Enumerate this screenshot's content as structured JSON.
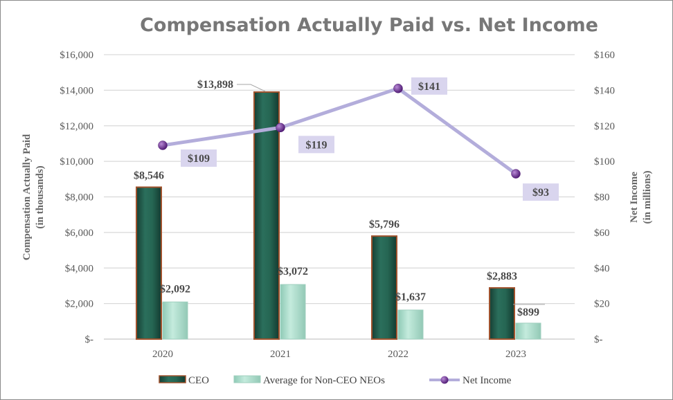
{
  "chart_data": {
    "type": "bar",
    "title": "Compensation Actually Paid vs. Net Income",
    "categories": [
      "2020",
      "2021",
      "2022",
      "2023"
    ],
    "y_left": {
      "title_line1": "Compensation Actually Paid",
      "title_line2": "(in thousands)",
      "ticks": [
        "$-",
        "$2,000",
        "$4,000",
        "$6,000",
        "$8,000",
        "$10,000",
        "$12,000",
        "$14,000",
        "$16,000"
      ],
      "range": [
        0,
        16000
      ]
    },
    "y_right": {
      "title_line1": "Net Income",
      "title_line2": "(in millions)",
      "ticks": [
        "$-",
        "$20",
        "$40",
        "$60",
        "$80",
        "$100",
        "$120",
        "$140",
        "$160"
      ],
      "range": [
        0,
        160
      ]
    },
    "series": [
      {
        "name": "CEO",
        "type": "bar",
        "axis": "left",
        "values": [
          8546,
          13898,
          5796,
          2883
        ],
        "labels": [
          "$8,546",
          "$13,898",
          "$5,796",
          "$2,883"
        ],
        "color": "#215f4d",
        "edge_color": "#a0522d"
      },
      {
        "name": "Average for Non-CEO NEOs",
        "type": "bar",
        "axis": "left",
        "values": [
          2092,
          3072,
          1637,
          899
        ],
        "labels": [
          "$2,092",
          "$3,072",
          "$1,637",
          "$899"
        ],
        "color": "#a9dccb"
      },
      {
        "name": "Net Income",
        "type": "line",
        "axis": "right",
        "values": [
          109,
          119,
          141,
          93
        ],
        "labels": [
          "$109",
          "$119",
          "$141",
          "$93"
        ],
        "color": "#b3addb",
        "marker_color": "#6a2c8f"
      }
    ],
    "grid": true,
    "legend_position": "bottom"
  }
}
